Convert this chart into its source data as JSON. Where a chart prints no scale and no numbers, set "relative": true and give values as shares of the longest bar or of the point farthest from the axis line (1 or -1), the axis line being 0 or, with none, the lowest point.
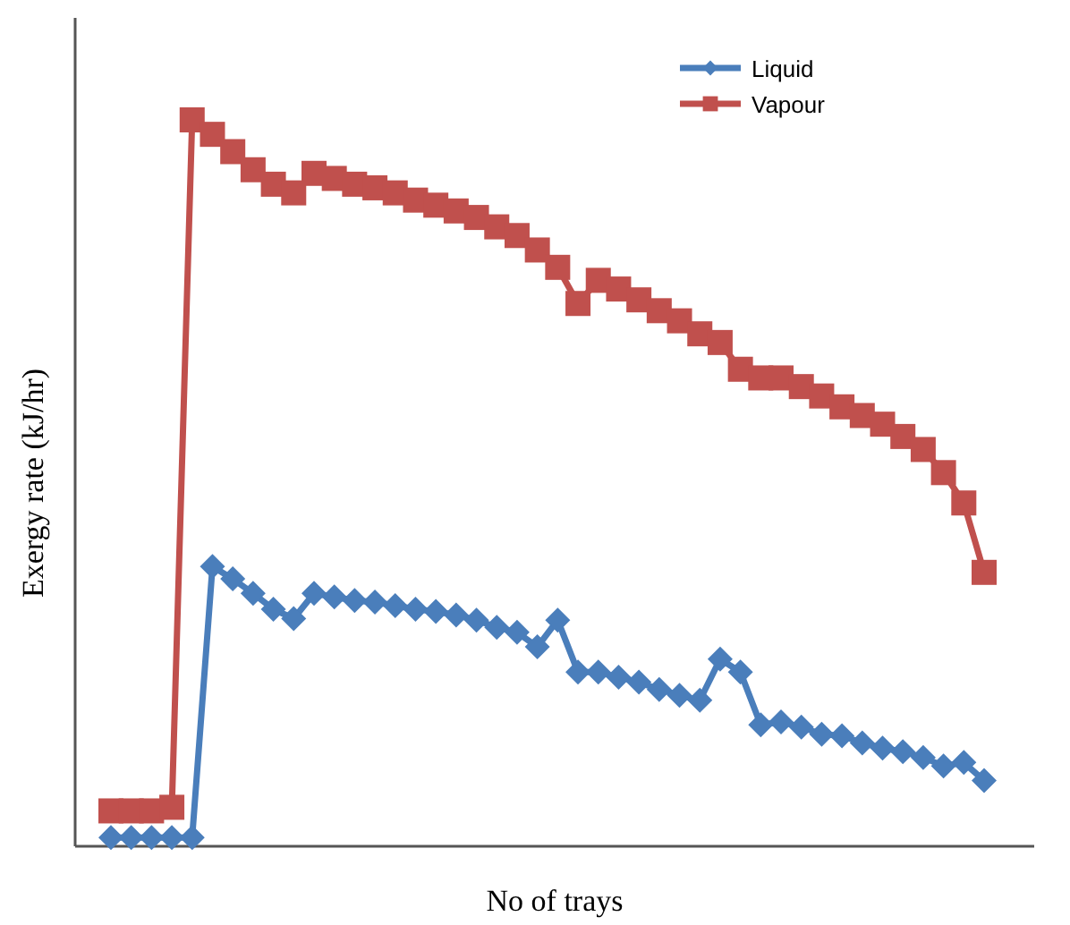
{
  "chart_data": {
    "type": "line",
    "relative": true,
    "xlabel": "No of trays",
    "ylabel": "Exergy rate (kJ/hr)",
    "legend": "top right",
    "categories": [
      null,
      null,
      null,
      null,
      null,
      null,
      null,
      null,
      null,
      null,
      null,
      null,
      null,
      null,
      null,
      null,
      null,
      null,
      null,
      null,
      null,
      null,
      null,
      null,
      null,
      null,
      null,
      null,
      null,
      null,
      null,
      null,
      null,
      null,
      null,
      null,
      null,
      null,
      null,
      null,
      null,
      null,
      null,
      null
    ],
    "series": [
      {
        "name": "Liquid",
        "color": "#4a7ebb",
        "marker": "diamond",
        "values": [
          0.007,
          0.007,
          0.007,
          0.007,
          0.007,
          0.382,
          0.365,
          0.345,
          0.323,
          0.31,
          0.345,
          0.34,
          0.335,
          0.333,
          0.328,
          0.323,
          0.32,
          0.315,
          0.308,
          0.298,
          0.291,
          0.271,
          0.308,
          0.236,
          0.236,
          0.229,
          0.222,
          0.212,
          0.204,
          0.197,
          0.254,
          0.236,
          0.163,
          0.167,
          0.16,
          0.15,
          0.148,
          0.138,
          0.131,
          0.126,
          0.118,
          0.106,
          0.111,
          0.086
        ]
      },
      {
        "name": "Vapour",
        "color": "#c0504d",
        "marker": "square",
        "values": [
          0.044,
          0.044,
          0.044,
          0.049,
          1,
          0.98,
          0.956,
          0.931,
          0.911,
          0.899,
          0.926,
          0.919,
          0.911,
          0.906,
          0.899,
          0.889,
          0.882,
          0.874,
          0.865,
          0.852,
          0.84,
          0.82,
          0.796,
          0.746,
          0.778,
          0.766,
          0.751,
          0.736,
          0.722,
          0.704,
          0.692,
          0.655,
          0.643,
          0.643,
          0.631,
          0.618,
          0.603,
          0.591,
          0.579,
          0.562,
          0.544,
          0.512,
          0.47,
          0.374
        ]
      }
    ]
  }
}
